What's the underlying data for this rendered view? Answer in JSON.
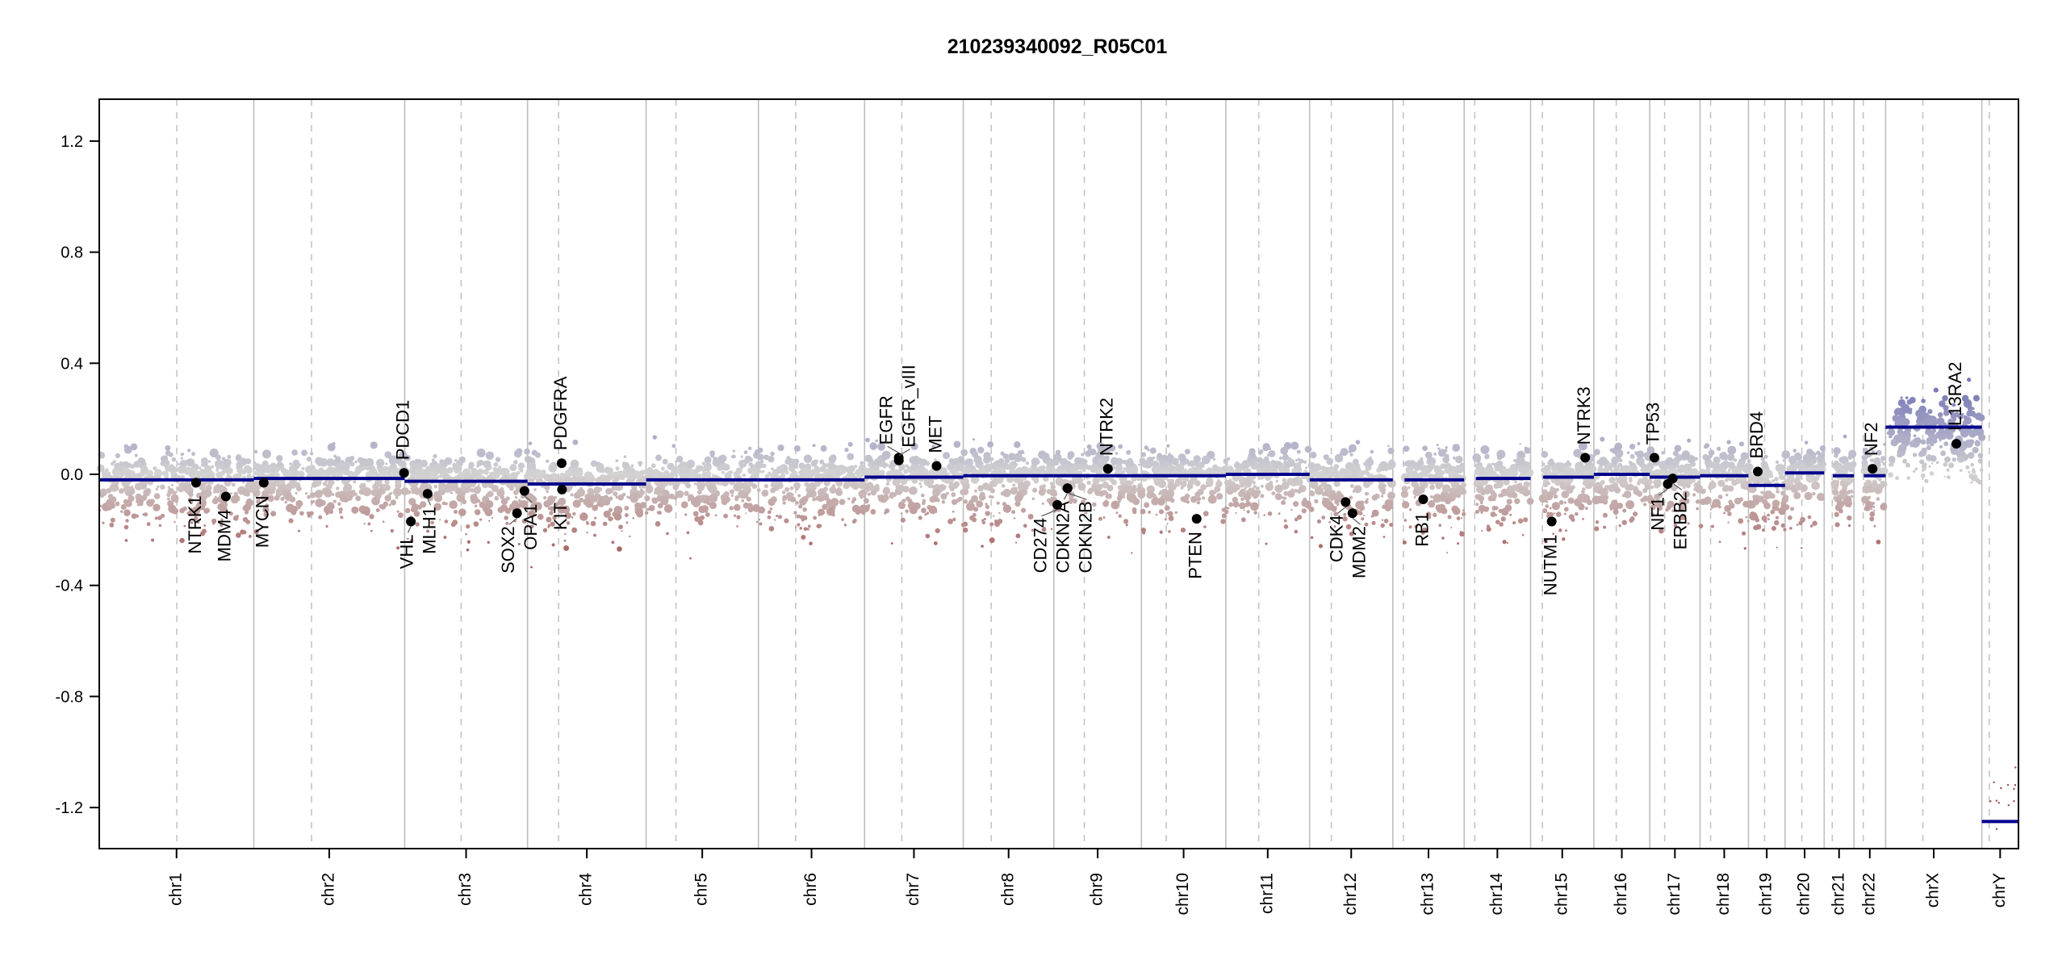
{
  "chart_data": {
    "type": "scatter",
    "title": "210239340092_R05C01",
    "xlabel": "",
    "ylabel": "",
    "ylim": [
      -1.35,
      1.35
    ],
    "yticks": [
      1.2,
      0.8,
      0.4,
      0.0,
      -0.4,
      -0.8,
      -1.2
    ],
    "ytick_labels": [
      "1.2",
      "0.8",
      "0.4",
      "0.0",
      "-0.4",
      "-0.8",
      "-1.2"
    ],
    "grid": false,
    "colors": {
      "segment": "#00008b",
      "gain": "#7a7ab8",
      "neutral": "#d3d3d3",
      "loss": "#a04848",
      "gene_point": "#000000",
      "boundary": "#bebebe"
    },
    "chromosomes": [
      {
        "name": "chr1",
        "length_mb": 249,
        "centromere_mb": 125,
        "segment": -0.02
      },
      {
        "name": "chr2",
        "length_mb": 243,
        "centromere_mb": 93,
        "segment": -0.015
      },
      {
        "name": "chr3",
        "length_mb": 198,
        "centromere_mb": 91,
        "segment": -0.025
      },
      {
        "name": "chr4",
        "length_mb": 191,
        "centromere_mb": 50,
        "segment": -0.035
      },
      {
        "name": "chr5",
        "length_mb": 181,
        "centromere_mb": 48,
        "segment": -0.02
      },
      {
        "name": "chr6",
        "length_mb": 171,
        "centromere_mb": 60,
        "segment": -0.02
      },
      {
        "name": "chr7",
        "length_mb": 159,
        "centromere_mb": 60,
        "segment": -0.01
      },
      {
        "name": "chr8",
        "length_mb": 146,
        "centromere_mb": 45,
        "segment": -0.005
      },
      {
        "name": "chr9",
        "length_mb": 141,
        "centromere_mb": 49,
        "segment": -0.005
      },
      {
        "name": "chr10",
        "length_mb": 136,
        "centromere_mb": 40,
        "segment": -0.005
      },
      {
        "name": "chr11",
        "length_mb": 135,
        "centromere_mb": 53,
        "segment": 0.0
      },
      {
        "name": "chr12",
        "length_mb": 134,
        "centromere_mb": 35,
        "segment": -0.02
      },
      {
        "name": "chr13",
        "length_mb": 115,
        "centromere_mb": 17,
        "segment": -0.02
      },
      {
        "name": "chr14",
        "length_mb": 107,
        "centromere_mb": 17,
        "segment": -0.015
      },
      {
        "name": "chr15",
        "length_mb": 102,
        "centromere_mb": 19,
        "segment": -0.01
      },
      {
        "name": "chr16",
        "length_mb": 90,
        "centromere_mb": 36,
        "segment": 0.0
      },
      {
        "name": "chr17",
        "length_mb": 81,
        "centromere_mb": 24,
        "segment": -0.01
      },
      {
        "name": "chr18",
        "length_mb": 78,
        "centromere_mb": 17,
        "segment": -0.005
      },
      {
        "name": "chr19",
        "length_mb": 59,
        "centromere_mb": 26,
        "segment": -0.04
      },
      {
        "name": "chr20",
        "length_mb": 63,
        "centromere_mb": 27,
        "segment": 0.005
      },
      {
        "name": "chr21",
        "length_mb": 48,
        "centromere_mb": 13,
        "segment": -0.005
      },
      {
        "name": "chr22",
        "length_mb": 51,
        "centromere_mb": 15,
        "segment": -0.005
      },
      {
        "name": "chrX",
        "length_mb": 155,
        "centromere_mb": 60,
        "segment": 0.17
      },
      {
        "name": "chrY",
        "length_mb": 59,
        "centromere_mb": 12,
        "segment": -1.25
      }
    ],
    "genes": [
      {
        "name": "NTRK1",
        "chr": "chr1",
        "pos_mb": 156,
        "value": -0.03
      },
      {
        "name": "MDM4",
        "chr": "chr1",
        "pos_mb": 204,
        "value": -0.08
      },
      {
        "name": "MYCN",
        "chr": "chr2",
        "pos_mb": 16,
        "value": -0.03
      },
      {
        "name": "PDCD1",
        "chr": "chr2",
        "pos_mb": 242,
        "value": 0.005
      },
      {
        "name": "VHL",
        "chr": "chr3",
        "pos_mb": 10,
        "value": -0.17
      },
      {
        "name": "MLH1",
        "chr": "chr3",
        "pos_mb": 37,
        "value": -0.07
      },
      {
        "name": "SOX2",
        "chr": "chr3",
        "pos_mb": 181,
        "value": -0.14
      },
      {
        "name": "OPA1",
        "chr": "chr3",
        "pos_mb": 193,
        "value": -0.06
      },
      {
        "name": "PDGFRA",
        "chr": "chr4",
        "pos_mb": 55,
        "value": 0.04
      },
      {
        "name": "KIT",
        "chr": "chr4",
        "pos_mb": 55.5,
        "value": -0.055
      },
      {
        "name": "EGFR",
        "chr": "chr7",
        "pos_mb": 55,
        "value": 0.06
      },
      {
        "name": "EGFR_vIII",
        "chr": "chr7",
        "pos_mb": 55.2,
        "value": 0.05
      },
      {
        "name": "MET",
        "chr": "chr7",
        "pos_mb": 116,
        "value": 0.03
      },
      {
        "name": "CD274",
        "chr": "chr9",
        "pos_mb": 5.5,
        "value": -0.11
      },
      {
        "name": "CDKN2A",
        "chr": "chr9",
        "pos_mb": 21.9,
        "value": -0.05
      },
      {
        "name": "CDKN2B",
        "chr": "chr9",
        "pos_mb": 22,
        "value": -0.05
      },
      {
        "name": "NTRK2",
        "chr": "chr9",
        "pos_mb": 87,
        "value": 0.02
      },
      {
        "name": "PTEN",
        "chr": "chr10",
        "pos_mb": 89,
        "value": -0.16
      },
      {
        "name": "CDK4",
        "chr": "chr12",
        "pos_mb": 58,
        "value": -0.1
      },
      {
        "name": "MDM2",
        "chr": "chr12",
        "pos_mb": 69,
        "value": -0.14
      },
      {
        "name": "RB1",
        "chr": "chr13",
        "pos_mb": 49,
        "value": -0.09
      },
      {
        "name": "NUTM1",
        "chr": "chr15",
        "pos_mb": 34,
        "value": -0.17
      },
      {
        "name": "NTRK3",
        "chr": "chr15",
        "pos_mb": 88,
        "value": 0.06
      },
      {
        "name": "TP53",
        "chr": "chr17",
        "pos_mb": 7.5,
        "value": 0.06
      },
      {
        "name": "NF1",
        "chr": "chr17",
        "pos_mb": 29,
        "value": -0.035
      },
      {
        "name": "ERBB2",
        "chr": "chr17",
        "pos_mb": 37,
        "value": -0.015
      },
      {
        "name": "BRD4",
        "chr": "chr19",
        "pos_mb": 15,
        "value": 0.01
      },
      {
        "name": "NF2",
        "chr": "chr22",
        "pos_mb": 30,
        "value": 0.02
      },
      {
        "name": "IL13RA2",
        "chr": "chrX",
        "pos_mb": 114,
        "value": 0.11
      }
    ]
  }
}
